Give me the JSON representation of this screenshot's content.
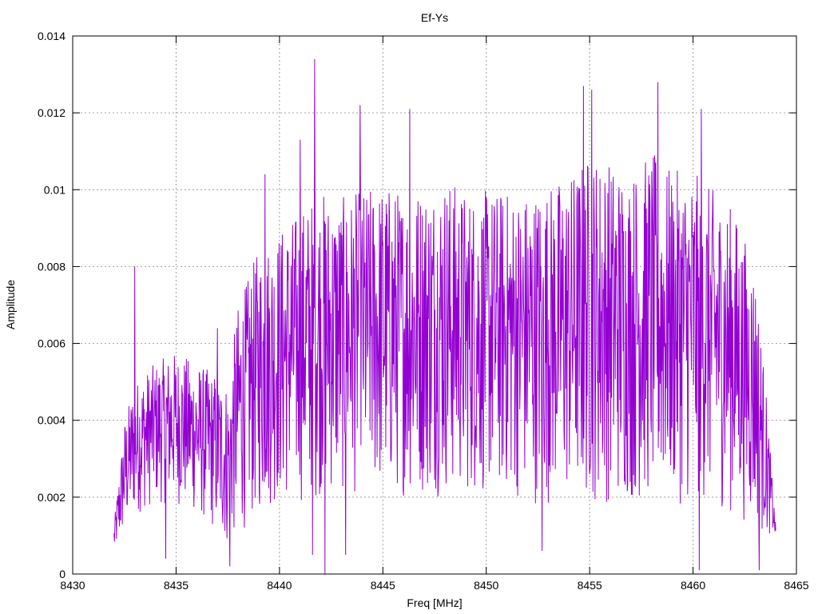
{
  "chart_data": {
    "type": "line",
    "title": "Ef-Ys",
    "xlabel": "Freq [MHz]",
    "ylabel": "Amplitude",
    "xlim": [
      8430,
      8465
    ],
    "ylim": [
      0,
      0.014
    ],
    "x_ticks": [
      8430,
      8435,
      8440,
      8445,
      8450,
      8455,
      8460,
      8465
    ],
    "y_ticks": [
      0,
      0.002,
      0.004,
      0.006,
      0.008,
      0.01,
      0.012,
      0.014
    ],
    "x_tick_labels": [
      "8430",
      "8435",
      "8440",
      "8445",
      "8450",
      "8455",
      "8460",
      "8465"
    ],
    "y_tick_labels": [
      "0",
      "0.002",
      "0.004",
      "0.006",
      "0.008",
      "0.01",
      "0.012",
      "0.014"
    ],
    "grid": true,
    "line_color": "#9400d3",
    "series": [
      {
        "x_start": 8432.0,
        "x_step": 0.02,
        "envelope_x": [
          8432.0,
          8432.5,
          8433.0,
          8434.0,
          8435.0,
          8436.0,
          8437.0,
          8437.5,
          8438.0,
          8439.0,
          8440.0,
          8441.0,
          8442.0,
          8443.0,
          8444.0,
          8445.0,
          8446.0,
          8447.0,
          8448.0,
          8449.0,
          8450.0,
          8451.0,
          8452.0,
          8453.0,
          8454.0,
          8455.0,
          8456.0,
          8457.0,
          8458.0,
          8459.0,
          8460.0,
          8461.0,
          8462.0,
          8463.0,
          8463.5,
          8464.0
        ],
        "envelope_high": [
          0.0013,
          0.004,
          0.005,
          0.0055,
          0.0058,
          0.0055,
          0.0052,
          0.005,
          0.007,
          0.0085,
          0.009,
          0.0095,
          0.01,
          0.0098,
          0.01,
          0.0102,
          0.01,
          0.0102,
          0.0104,
          0.01,
          0.01,
          0.01,
          0.01,
          0.0102,
          0.0104,
          0.011,
          0.0108,
          0.0105,
          0.011,
          0.0105,
          0.0105,
          0.01,
          0.0095,
          0.008,
          0.005,
          0.0012
        ],
        "envelope_low": [
          0.0005,
          0.001,
          0.0015,
          0.0018,
          0.0018,
          0.0015,
          0.001,
          0.0006,
          0.001,
          0.0015,
          0.0018,
          0.0018,
          0.002,
          0.002,
          0.002,
          0.002,
          0.002,
          0.002,
          0.002,
          0.002,
          0.002,
          0.002,
          0.0018,
          0.0018,
          0.0018,
          0.0018,
          0.0018,
          0.0018,
          0.0018,
          0.0018,
          0.0018,
          0.0018,
          0.0015,
          0.0012,
          0.001,
          0.001
        ],
        "peaks": [
          {
            "x": 8433.0,
            "y": 0.008
          },
          {
            "x": 8434.5,
            "y": 0.0071
          },
          {
            "x": 8437.0,
            "y": 0.0064
          },
          {
            "x": 8439.3,
            "y": 0.0104
          },
          {
            "x": 8441.0,
            "y": 0.0113
          },
          {
            "x": 8441.7,
            "y": 0.0134
          },
          {
            "x": 8443.9,
            "y": 0.0122
          },
          {
            "x": 8446.3,
            "y": 0.0121
          },
          {
            "x": 8454.7,
            "y": 0.0127
          },
          {
            "x": 8455.1,
            "y": 0.0126
          },
          {
            "x": 8458.3,
            "y": 0.0128
          },
          {
            "x": 8460.4,
            "y": 0.0121
          }
        ],
        "troughs": [
          {
            "x": 8434.5,
            "y": 0.0004
          },
          {
            "x": 8437.6,
            "y": 0.0002
          },
          {
            "x": 8441.6,
            "y": 0.0005
          },
          {
            "x": 8442.2,
            "y": 0.0
          },
          {
            "x": 8443.2,
            "y": 0.0005
          },
          {
            "x": 8452.7,
            "y": 0.0006
          },
          {
            "x": 8460.3,
            "y": 0.0001
          },
          {
            "x": 8463.2,
            "y": 0.0001
          }
        ]
      }
    ]
  }
}
